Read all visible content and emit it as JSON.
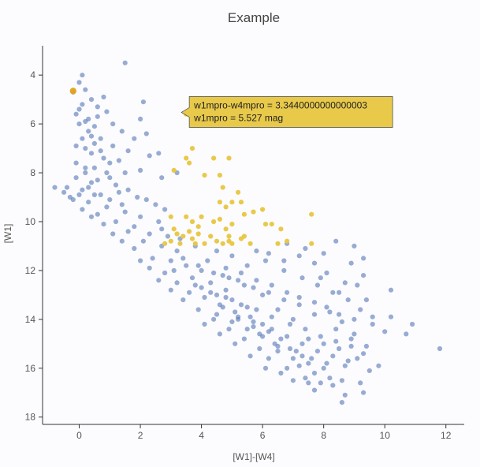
{
  "chart_data": {
    "type": "scatter",
    "title": "Example",
    "xlabel": "[W1]-[W4]",
    "ylabel": "[W1]",
    "xlim": [
      -1.2,
      12.6
    ],
    "ylim": [
      18.3,
      2.8
    ],
    "y_reversed": true,
    "x_ticks": [
      0,
      2,
      4,
      6,
      8,
      10,
      12
    ],
    "y_ticks": [
      4,
      6,
      8,
      10,
      12,
      14,
      16,
      18
    ],
    "grid": false,
    "colors": {
      "main": "#5a7ab8",
      "selected": "#e8c640",
      "highlight": "#e0a419",
      "tooltip_bg": "#e8c94a"
    },
    "series": [
      {
        "role": "main",
        "points": [
          [
            1.5,
            3.5
          ],
          [
            0.1,
            4.0
          ],
          [
            0.0,
            4.3
          ],
          [
            0.2,
            4.6
          ],
          [
            -0.2,
            4.7
          ],
          [
            0.8,
            4.9
          ],
          [
            0.4,
            5.0
          ],
          [
            0.1,
            5.2
          ],
          [
            0.6,
            5.3
          ],
          [
            0.9,
            5.5
          ],
          [
            -0.1,
            5.6
          ],
          [
            0.3,
            5.8
          ],
          [
            0.0,
            6.0
          ],
          [
            0.5,
            6.1
          ],
          [
            2.1,
            5.1
          ],
          [
            2.0,
            5.8
          ],
          [
            1.1,
            6.0
          ],
          [
            1.4,
            6.3
          ],
          [
            2.2,
            6.4
          ],
          [
            1.8,
            6.6
          ],
          [
            0.7,
            6.6
          ],
          [
            1.1,
            6.9
          ],
          [
            1.6,
            7.1
          ],
          [
            2.3,
            7.3
          ],
          [
            2.6,
            7.2
          ],
          [
            1.3,
            7.5
          ],
          [
            0.8,
            7.4
          ],
          [
            0.2,
            7.0
          ],
          [
            -0.1,
            7.6
          ],
          [
            0.5,
            7.8
          ],
          [
            1.5,
            8.0
          ],
          [
            2.0,
            7.9
          ],
          [
            2.7,
            8.2
          ],
          [
            3.2,
            8.0
          ],
          [
            1.0,
            8.2
          ],
          [
            0.4,
            8.4
          ],
          [
            -0.4,
            8.6
          ],
          [
            0.1,
            8.7
          ],
          [
            0.7,
            8.9
          ],
          [
            1.3,
            8.8
          ],
          [
            1.9,
            9.0
          ],
          [
            2.5,
            9.3
          ],
          [
            -0.8,
            8.6
          ],
          [
            -0.3,
            9.0
          ],
          [
            0.3,
            9.2
          ],
          [
            0.9,
            9.4
          ],
          [
            1.5,
            9.6
          ],
          [
            2.0,
            9.8
          ],
          [
            2.6,
            10.0
          ],
          [
            0.6,
            9.7
          ],
          [
            1.2,
            10.0
          ],
          [
            1.8,
            10.2
          ],
          [
            2.3,
            10.5
          ],
          [
            2.9,
            10.6
          ],
          [
            1.6,
            10.4
          ],
          [
            2.1,
            10.8
          ],
          [
            2.7,
            11.0
          ],
          [
            3.2,
            11.2
          ],
          [
            2.4,
            11.5
          ],
          [
            3.0,
            11.6
          ],
          [
            3.5,
            11.8
          ],
          [
            4.0,
            12.0
          ],
          [
            3.1,
            12.0
          ],
          [
            3.7,
            12.3
          ],
          [
            4.3,
            12.5
          ],
          [
            4.8,
            12.8
          ],
          [
            4.0,
            12.7
          ],
          [
            4.5,
            13.0
          ],
          [
            5.0,
            13.2
          ],
          [
            5.5,
            13.5
          ],
          [
            4.6,
            13.4
          ],
          [
            5.1,
            13.7
          ],
          [
            5.6,
            13.9
          ],
          [
            6.0,
            14.2
          ],
          [
            5.2,
            14.0
          ],
          [
            5.7,
            14.3
          ],
          [
            6.2,
            14.5
          ],
          [
            6.6,
            14.8
          ],
          [
            5.9,
            14.6
          ],
          [
            6.4,
            15.0
          ],
          [
            6.9,
            15.2
          ],
          [
            7.3,
            15.5
          ],
          [
            6.5,
            15.3
          ],
          [
            7.0,
            15.6
          ],
          [
            7.5,
            15.8
          ],
          [
            8.0,
            16.0
          ],
          [
            7.2,
            15.9
          ],
          [
            7.7,
            16.2
          ],
          [
            8.2,
            16.4
          ],
          [
            8.6,
            16.5
          ],
          [
            4.2,
            11.6
          ],
          [
            4.8,
            11.9
          ],
          [
            5.3,
            12.1
          ],
          [
            5.8,
            12.4
          ],
          [
            6.3,
            12.6
          ],
          [
            6.8,
            12.9
          ],
          [
            7.2,
            13.1
          ],
          [
            7.7,
            13.3
          ],
          [
            8.1,
            13.5
          ],
          [
            8.5,
            13.8
          ],
          [
            9.0,
            14.0
          ],
          [
            5.5,
            11.8
          ],
          [
            6.1,
            11.6
          ],
          [
            6.7,
            12.0
          ],
          [
            7.3,
            12.3
          ],
          [
            7.8,
            12.6
          ],
          [
            8.3,
            12.9
          ],
          [
            8.8,
            13.2
          ],
          [
            9.2,
            13.6
          ],
          [
            9.6,
            14.2
          ],
          [
            8.4,
            14.4
          ],
          [
            8.9,
            14.8
          ],
          [
            9.4,
            15.1
          ],
          [
            9.1,
            15.6
          ],
          [
            8.7,
            15.9
          ],
          [
            8.3,
            16.7
          ],
          [
            8.7,
            17.1
          ],
          [
            8.6,
            17.4
          ],
          [
            9.2,
            16.6
          ],
          [
            9.3,
            17.0
          ],
          [
            7.9,
            16.6
          ],
          [
            7.7,
            16.9
          ],
          [
            7.5,
            16.6
          ],
          [
            10.9,
            14.2
          ],
          [
            10.7,
            14.6
          ],
          [
            10.2,
            13.9
          ],
          [
            11.8,
            15.2
          ],
          [
            9.8,
            15.9
          ],
          [
            9.5,
            16.1
          ],
          [
            8.4,
            10.8
          ],
          [
            9.0,
            11.0
          ],
          [
            9.3,
            11.5
          ],
          [
            8.9,
            11.7
          ],
          [
            9.3,
            12.2
          ],
          [
            8.7,
            12.5
          ],
          [
            8.1,
            12.1
          ],
          [
            7.7,
            11.7
          ],
          [
            7.2,
            11.4
          ],
          [
            6.7,
            11.6
          ],
          [
            6.2,
            11.3
          ],
          [
            5.8,
            11.2
          ],
          [
            10.2,
            12.8
          ],
          [
            9.4,
            13.2
          ],
          [
            7.0,
            14.0
          ],
          [
            6.5,
            13.6
          ],
          [
            6.0,
            13.0
          ],
          [
            5.4,
            12.6
          ],
          [
            4.9,
            12.3
          ],
          [
            4.4,
            12.1
          ],
          [
            3.9,
            11.8
          ],
          [
            3.4,
            11.5
          ],
          [
            7.5,
            14.8
          ],
          [
            8.0,
            15.0
          ],
          [
            8.5,
            15.2
          ],
          [
            6.2,
            15.6
          ],
          [
            6.8,
            16.0
          ],
          [
            7.4,
            16.4
          ],
          [
            5.4,
            14.8
          ],
          [
            5.9,
            15.2
          ],
          [
            4.9,
            14.4
          ],
          [
            4.4,
            14.0
          ],
          [
            3.9,
            13.6
          ],
          [
            3.4,
            13.2
          ],
          [
            3.0,
            12.8
          ],
          [
            2.6,
            12.4
          ],
          [
            4.1,
            13.1
          ],
          [
            4.7,
            13.5
          ],
          [
            5.2,
            13.9
          ],
          [
            5.7,
            14.1
          ],
          [
            6.3,
            14.4
          ],
          [
            6.8,
            14.7
          ],
          [
            7.3,
            15.0
          ],
          [
            7.8,
            15.3
          ],
          [
            8.3,
            15.5
          ],
          [
            8.8,
            15.7
          ],
          [
            9.3,
            15.4
          ],
          [
            9.0,
            14.6
          ],
          [
            8.6,
            14.1
          ],
          [
            8.2,
            13.7
          ],
          [
            7.7,
            13.8
          ],
          [
            7.2,
            13.4
          ],
          [
            6.7,
            13.2
          ],
          [
            6.2,
            12.9
          ],
          [
            5.7,
            12.7
          ],
          [
            5.2,
            12.4
          ],
          [
            4.7,
            12.2
          ],
          [
            3.8,
            12.6
          ],
          [
            4.3,
            12.9
          ],
          [
            4.8,
            13.1
          ],
          [
            5.3,
            13.4
          ],
          [
            5.8,
            13.6
          ],
          [
            6.3,
            13.9
          ],
          [
            6.9,
            14.2
          ],
          [
            7.4,
            14.4
          ],
          [
            7.9,
            14.7
          ],
          [
            8.4,
            14.9
          ],
          [
            8.9,
            15.1
          ],
          [
            6.5,
            15.1
          ],
          [
            7.1,
            15.3
          ],
          [
            7.6,
            15.6
          ],
          [
            8.1,
            15.8
          ],
          [
            5.0,
            14.1
          ],
          [
            5.5,
            14.4
          ],
          [
            6.0,
            14.7
          ],
          [
            4.5,
            13.8
          ],
          [
            3.6,
            12.9
          ],
          [
            3.2,
            12.5
          ],
          [
            2.8,
            12.1
          ],
          [
            2.3,
            11.9
          ],
          [
            2.0,
            11.6
          ],
          [
            1.8,
            11.1
          ],
          [
            1.4,
            10.8
          ],
          [
            1.1,
            10.5
          ],
          [
            0.8,
            10.1
          ],
          [
            0.4,
            9.8
          ],
          [
            0.1,
            9.5
          ],
          [
            -0.2,
            9.1
          ],
          [
            -0.5,
            8.8
          ],
          [
            0.0,
            8.9
          ],
          [
            0.3,
            8.6
          ],
          [
            0.6,
            8.3
          ],
          [
            0.9,
            8.0
          ],
          [
            0.2,
            7.8
          ],
          [
            -0.1,
            8.2
          ],
          [
            0.4,
            7.2
          ],
          [
            0.1,
            6.6
          ],
          [
            0.3,
            6.3
          ],
          [
            -0.1,
            6.9
          ],
          [
            0.5,
            6.8
          ],
          [
            0.7,
            7.1
          ],
          [
            1.0,
            7.6
          ],
          [
            1.2,
            8.5
          ],
          [
            1.6,
            8.7
          ],
          [
            2.2,
            9.1
          ],
          [
            2.8,
            9.5
          ],
          [
            0.0,
            5.4
          ],
          [
            0.2,
            5.9
          ],
          [
            0.6,
            5.7
          ],
          [
            0.4,
            6.5
          ],
          [
            0.2,
            8.0
          ],
          [
            0.5,
            8.9
          ],
          [
            1.0,
            9.1
          ],
          [
            1.4,
            9.3
          ],
          [
            2.7,
            10.3
          ],
          [
            3.3,
            10.7
          ],
          [
            3.8,
            11.0
          ],
          [
            4.5,
            11.2
          ],
          [
            5.0,
            11.4
          ],
          [
            6.8,
            10.9
          ],
          [
            7.4,
            11.1
          ],
          [
            8.0,
            11.3
          ],
          [
            7.9,
            12.3
          ],
          [
            8.5,
            12.9
          ],
          [
            9.1,
            12.6
          ],
          [
            9.6,
            13.9
          ],
          [
            10.0,
            14.5
          ],
          [
            6.6,
            16.2
          ],
          [
            7.0,
            16.5
          ],
          [
            6.1,
            16.0
          ],
          [
            5.6,
            15.5
          ],
          [
            5.1,
            15.0
          ],
          [
            4.6,
            14.6
          ],
          [
            4.1,
            14.2
          ]
        ]
      },
      {
        "role": "selected",
        "points": [
          [
            3.5,
            5.6
          ],
          [
            3.5,
            7.4
          ],
          [
            3.7,
            7.0
          ],
          [
            4.4,
            7.4
          ],
          [
            4.1,
            8.1
          ],
          [
            3.1,
            7.9
          ],
          [
            3.6,
            7.6
          ],
          [
            4.6,
            8.1
          ],
          [
            4.9,
            7.4
          ],
          [
            4.7,
            8.6
          ],
          [
            5.2,
            8.8
          ],
          [
            4.6,
            9.2
          ],
          [
            4.8,
            9.4
          ],
          [
            5.0,
            9.2
          ],
          [
            5.3,
            9.2
          ],
          [
            5.7,
            9.6
          ],
          [
            6.0,
            9.5
          ],
          [
            5.4,
            9.7
          ],
          [
            3.0,
            9.8
          ],
          [
            3.5,
            9.8
          ],
          [
            3.7,
            10.0
          ],
          [
            3.9,
            10.2
          ],
          [
            4.0,
            9.8
          ],
          [
            4.4,
            10.0
          ],
          [
            4.6,
            9.9
          ],
          [
            4.8,
            10.3
          ],
          [
            5.0,
            10.1
          ],
          [
            3.1,
            10.3
          ],
          [
            3.2,
            10.5
          ],
          [
            3.4,
            10.6
          ],
          [
            3.6,
            10.4
          ],
          [
            3.7,
            10.7
          ],
          [
            3.9,
            10.5
          ],
          [
            4.1,
            10.9
          ],
          [
            4.3,
            10.6
          ],
          [
            4.5,
            10.8
          ],
          [
            4.9,
            10.6
          ],
          [
            5.0,
            10.9
          ],
          [
            5.3,
            10.7
          ],
          [
            5.6,
            10.9
          ],
          [
            3.3,
            10.9
          ],
          [
            2.8,
            10.9
          ],
          [
            3.0,
            10.8
          ],
          [
            3.8,
            10.9
          ],
          [
            4.7,
            10.9
          ],
          [
            6.1,
            10.1
          ],
          [
            6.3,
            10.1
          ],
          [
            6.6,
            10.3
          ],
          [
            6.8,
            10.8
          ],
          [
            6.5,
            10.9
          ],
          [
            7.6,
            9.7
          ],
          [
            7.6,
            10.9
          ],
          [
            4.9,
            10.8
          ],
          [
            5.4,
            10.6
          ]
        ]
      },
      {
        "role": "highlight",
        "points": [
          [
            -0.2,
            4.65
          ]
        ]
      }
    ],
    "tooltip": {
      "point": [
        3.344,
        5.527
      ],
      "lines": [
        "w1mpro-w4mpro = 3.3440000000000003",
        "w1mpro = 5.527 mag"
      ]
    }
  }
}
